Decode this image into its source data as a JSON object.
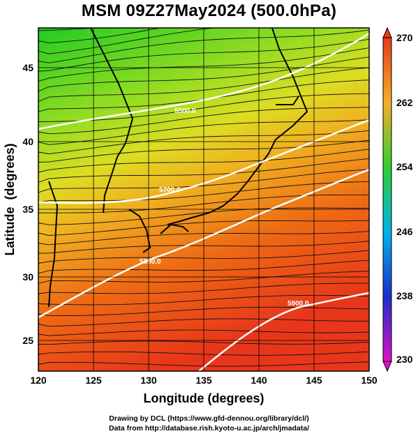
{
  "title": "MSM 09Z27May2024 (500.0hPa)",
  "x_axis": {
    "label": "Longitude (degrees)",
    "ticks": [
      "120",
      "125",
      "130",
      "135",
      "140",
      "145",
      "150"
    ]
  },
  "y_axis": {
    "label": "Latitude  (degrees)",
    "ticks": [
      "25",
      "30",
      "35",
      "40",
      "45"
    ]
  },
  "colorbar": {
    "ticks": [
      "270",
      "262",
      "254",
      "246",
      "238",
      "230"
    ],
    "min": 230,
    "max": 270
  },
  "contours": [
    {
      "label": "5500.0"
    },
    {
      "label": "5700.0"
    },
    {
      "label": "5800.0"
    },
    {
      "label": "5900.0"
    }
  ],
  "credits": {
    "line1": "Drawing by DCL (https://www.gfd-dennou.org/library/dcl/)",
    "line2": "Data from http://database.rish.kyoto-u.ac.jp/arch/jmadata/"
  },
  "colors": {
    "cold": "#33cc33",
    "mid": "#d7d722",
    "warm": "#ee4411"
  }
}
